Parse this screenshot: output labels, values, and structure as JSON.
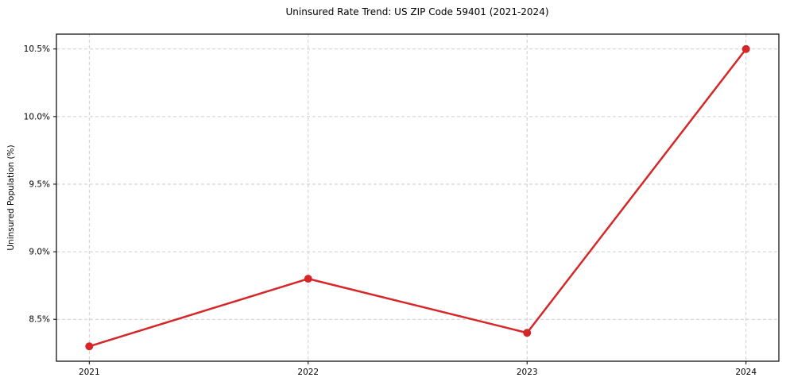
{
  "chart_data": {
    "type": "line",
    "title": "Uninsured Rate Trend: US ZIP Code 59401 (2021-2024)",
    "xlabel": "",
    "ylabel": "Uninsured Population (%)",
    "x": [
      2021,
      2022,
      2023,
      2024
    ],
    "values": [
      8.3,
      8.8,
      8.4,
      10.5
    ],
    "x_tick_labels": [
      "2021",
      "2022",
      "2023",
      "2024"
    ],
    "y_ticks": [
      8.5,
      9.0,
      9.5,
      10.0,
      10.5
    ],
    "y_tick_labels": [
      "8.5%",
      "9.0%",
      "9.5%",
      "10.0%",
      "10.5%"
    ],
    "xlim": [
      2020.85,
      2024.15
    ],
    "ylim": [
      8.19,
      10.61
    ],
    "grid": true,
    "legend": "none",
    "line_color": "#d62728",
    "marker": "circle",
    "grid_color": "#cdcdcd",
    "axis_color": "#000000",
    "text_color": "#000000",
    "background_color": "#ffffff"
  }
}
